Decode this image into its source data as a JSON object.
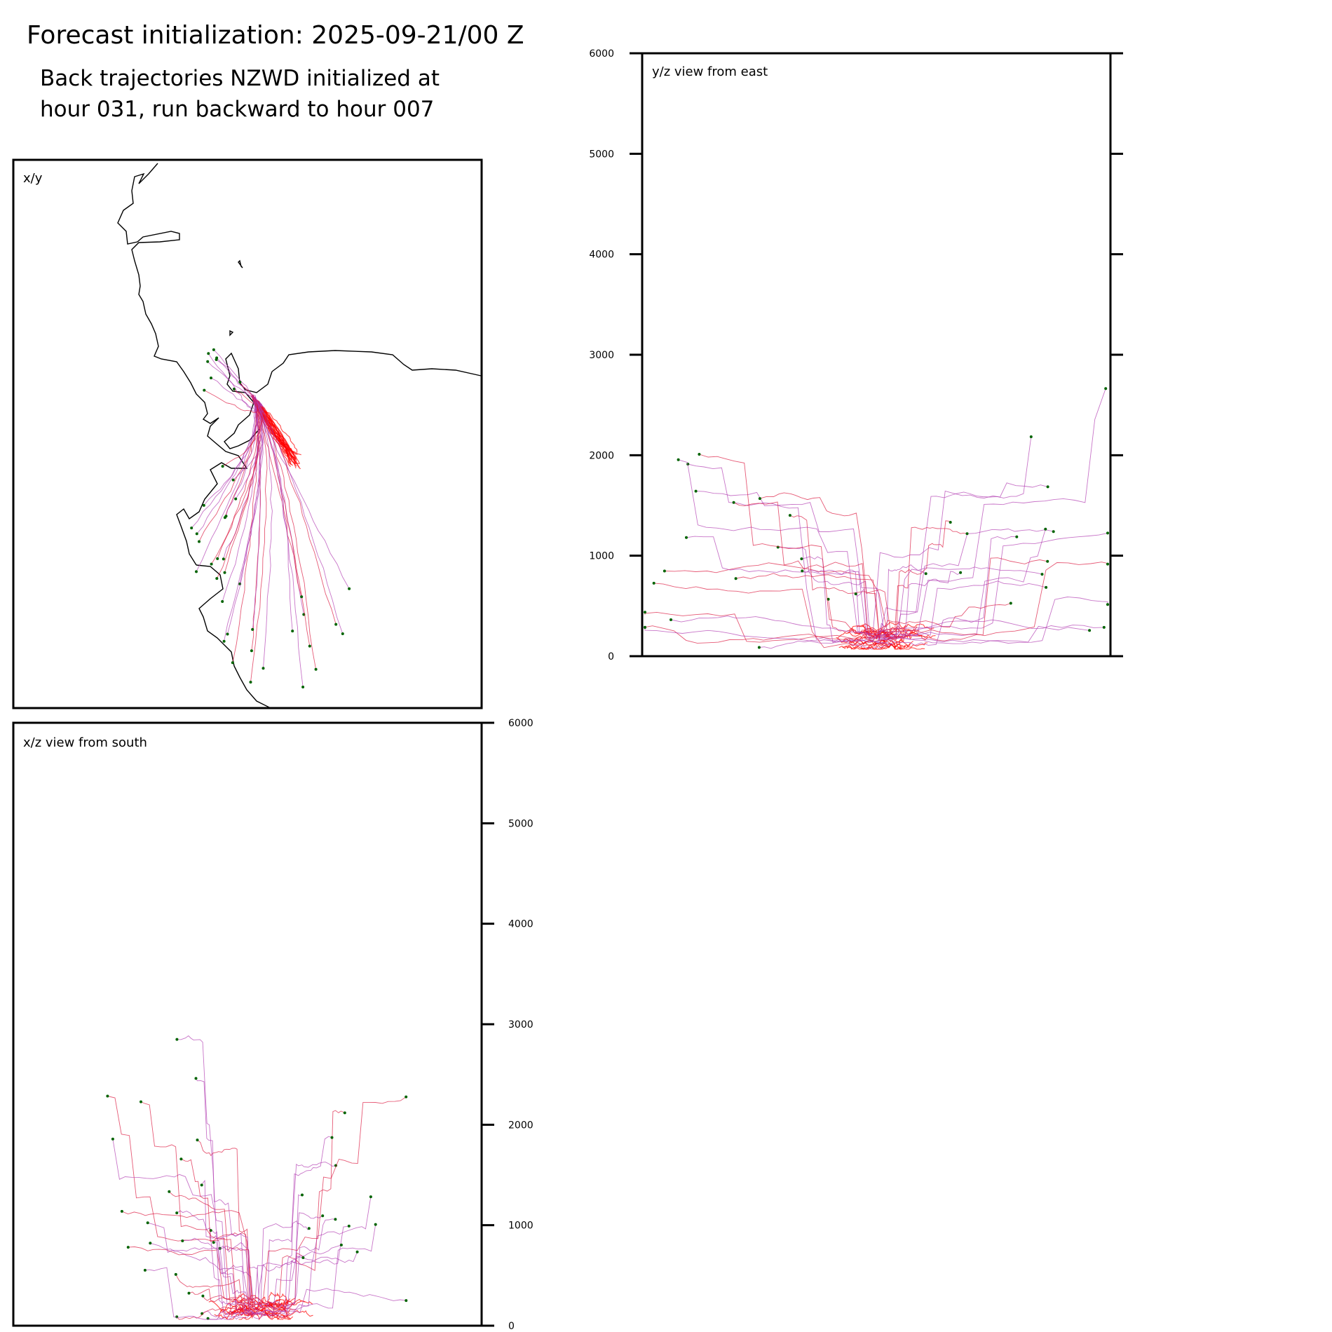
{
  "title": "Forecast initialization: 2025-09-21/00 Z",
  "subtitle_lines": [
    "Back trajectories NZWD initialized at",
    "hour 031, run backward to hour 007"
  ],
  "colors": {
    "trajectory_red": "#ff0000",
    "trajectory_crimson": "#dc143c",
    "trajectory_magenta": "#b03ab0",
    "endpoint_marker": "#006400",
    "coastline": "#000000"
  },
  "chart_data": [
    {
      "type": "line",
      "panel": "x/y",
      "label": "x/y",
      "note": "plan view with coastline; many trajectories converge on the release point",
      "xlabel": "",
      "ylabel": "",
      "axis_ticks": false
    },
    {
      "type": "line",
      "panel": "y/z",
      "label": "y/z view from east",
      "ylabel": "",
      "ylim": [
        0,
        6000
      ],
      "yticks": [
        "0",
        "1000",
        "2000",
        "3000",
        "4000",
        "5000",
        "6000"
      ],
      "ytick_side": "both",
      "tick_labels_side": "left"
    },
    {
      "type": "line",
      "panel": "x/z",
      "label": "x/z view from south",
      "ylabel": "",
      "ylim": [
        0,
        6000
      ],
      "yticks": [
        "0",
        "1000",
        "2000",
        "3000",
        "4000",
        "5000",
        "6000"
      ],
      "ytick_side": "right",
      "tick_labels_side": "right"
    }
  ]
}
